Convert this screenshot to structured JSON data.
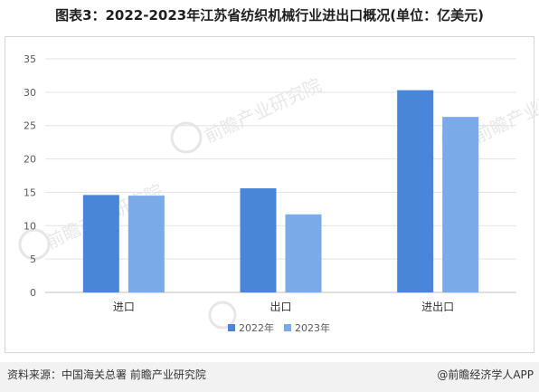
{
  "title": "图表3：2022-2023年江苏省纺织机械行业进出口概况(单位：亿美元)",
  "source": "资料来源：中国海关总署 前瞻产业研究院",
  "brand": "@前瞻经济学人APP",
  "watermark": "前瞻产业研究院",
  "colors": {
    "2022": "#4a86d8",
    "2023": "#7aaae8"
  },
  "chart_data": {
    "type": "bar",
    "categories": [
      "进口",
      "出口",
      "进出口"
    ],
    "series": [
      {
        "name": "2022年",
        "values": [
          14.6,
          15.6,
          30.3
        ]
      },
      {
        "name": "2023年",
        "values": [
          14.5,
          11.7,
          26.3
        ]
      }
    ],
    "ylim": [
      0,
      35
    ],
    "yticks": [
      "0",
      "5",
      "10",
      "15",
      "20",
      "25",
      "30",
      "35"
    ],
    "grid": true,
    "legend_position": "bottom"
  }
}
